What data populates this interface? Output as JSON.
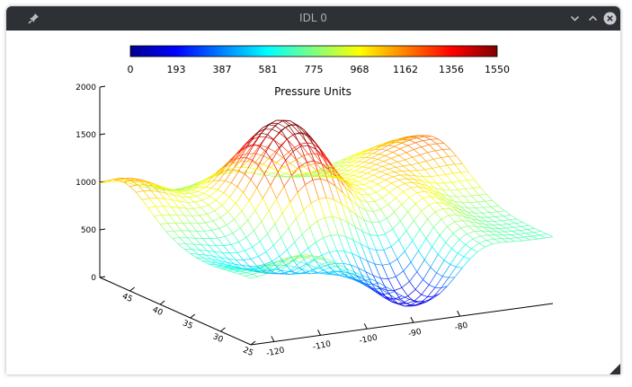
{
  "window": {
    "title": "IDL 0",
    "icons": [
      "pin-icon",
      "minimize-icon",
      "maximize-icon",
      "close-icon"
    ],
    "colors": {
      "titlebar": "#2d3035",
      "close": "#c9cbce"
    }
  },
  "chart_data": {
    "type": "surface",
    "title": "Pressure Units",
    "colorbar": {
      "colormap": "rainbow",
      "min": 0,
      "max": 1550,
      "tick_labels": [
        "0",
        "193",
        "387",
        "581",
        "775",
        "968",
        "1162",
        "1356",
        "1550"
      ]
    },
    "z_axis": {
      "range": [
        0,
        2000
      ],
      "tick_labels": [
        "0",
        "500",
        "1000",
        "1500",
        "2000"
      ]
    },
    "x_axis": {
      "range": [
        -125,
        -60
      ],
      "tick_labels": [
        "-120",
        "-110",
        "-100",
        "-90",
        "-80"
      ]
    },
    "y_axis": {
      "range": [
        25,
        50
      ],
      "tick_labels": [
        "45",
        "40",
        "35",
        "30",
        "25"
      ]
    },
    "grid": false,
    "mesh": {
      "rows": 25,
      "cols": 40
    }
  }
}
